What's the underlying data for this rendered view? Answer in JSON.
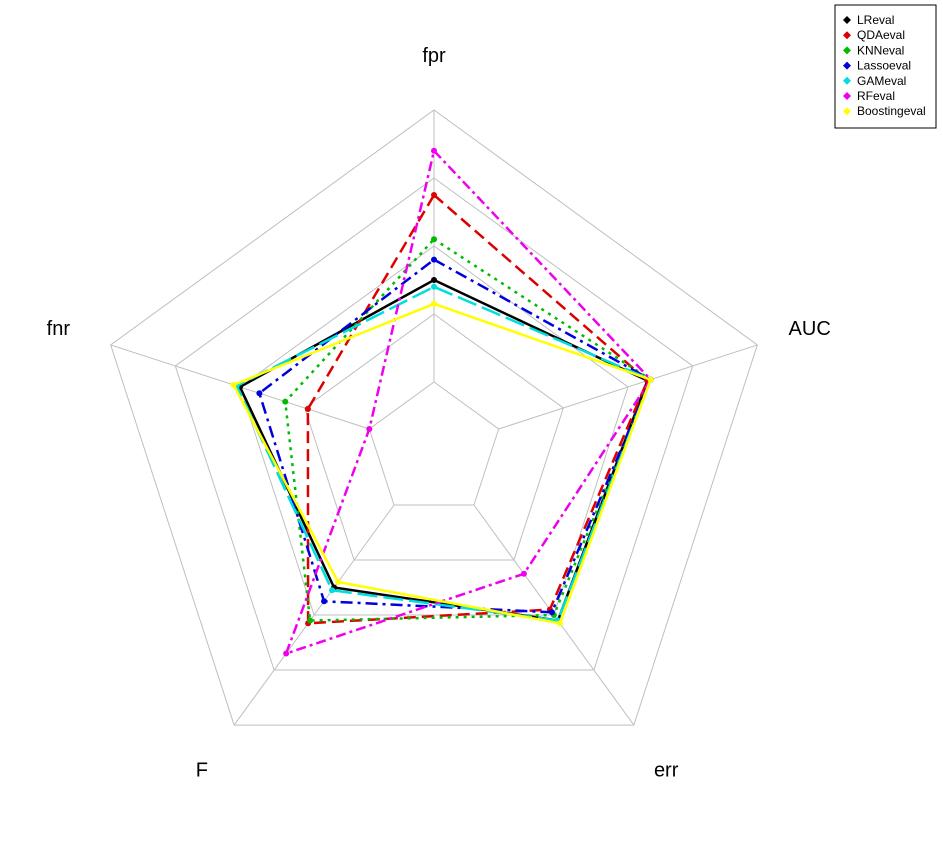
{
  "chart_data": {
    "type": "radar",
    "axes": [
      "fpr",
      "AUC",
      "err",
      "F",
      "fnr"
    ],
    "grid_levels": 5,
    "range": [
      0,
      1
    ],
    "legend_position": "top-right",
    "series": [
      {
        "name": "LReval",
        "color": "#000000",
        "dash": "solid",
        "values": [
          0.5,
          0.66,
          0.62,
          0.5,
          0.6
        ]
      },
      {
        "name": "QDAeval",
        "color": "#dd0000",
        "dash": "dashed",
        "values": [
          0.75,
          0.66,
          0.58,
          0.63,
          0.39
        ]
      },
      {
        "name": "KNNeval",
        "color": "#00bb00",
        "dash": "dotted",
        "values": [
          0.62,
          0.67,
          0.6,
          0.62,
          0.46
        ]
      },
      {
        "name": "Lassoeval",
        "color": "#0000dd",
        "dash": "dashdot",
        "values": [
          0.56,
          0.67,
          0.59,
          0.55,
          0.54
        ]
      },
      {
        "name": "GAMeval",
        "color": "#00dddd",
        "dash": "longdash",
        "values": [
          0.48,
          0.67,
          0.62,
          0.51,
          0.61
        ]
      },
      {
        "name": "RFeval",
        "color": "#ee00ee",
        "dash": "twodash",
        "values": [
          0.88,
          0.67,
          0.45,
          0.74,
          0.2
        ]
      },
      {
        "name": "Boostingeval",
        "color": "#ffff00",
        "dash": "solid",
        "values": [
          0.43,
          0.67,
          0.63,
          0.48,
          0.62
        ]
      }
    ]
  }
}
